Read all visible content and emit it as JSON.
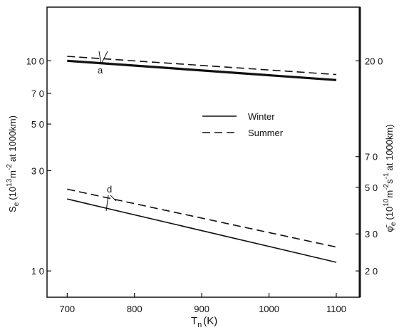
{
  "chart_data": {
    "type": "line",
    "x": [
      700,
      1100
    ],
    "xlabel": "T",
    "xlabel_sub": "n",
    "xlabel_unit": "(K)",
    "xlim": [
      670,
      1135
    ],
    "xticks": [
      700,
      800,
      900,
      1000,
      1100
    ],
    "xtick_labels": [
      "700",
      "800",
      "900",
      "1000",
      "1100"
    ],
    "left_axis": {
      "label": "S",
      "label_sub": "e",
      "label_rest": "(10",
      "label_sup": "13",
      "label_m": "m",
      "label_sup2": "-2",
      "label_tail": "at 1000km)",
      "scale": "log",
      "lim": [
        0.75,
        18
      ],
      "ticks": [
        1.0,
        3.0,
        5.0,
        7.0,
        10.0
      ],
      "tick_labels": [
        "1 0",
        "3 0",
        "5 0",
        "7 0",
        "10 0"
      ]
    },
    "right_axis": {
      "label": "φ̄",
      "label_sub": "e",
      "label_rest": "(10",
      "label_sup": "10",
      "label_m": "m",
      "label_sup2": "-2",
      "label_s": "s",
      "label_sup3": "-1",
      "label_tail": "at 1000km)",
      "scale": "log",
      "ticks": [
        2.0,
        3.0,
        5.0,
        7.0,
        20.0
      ],
      "tick_labels": [
        "2 0",
        "3 0",
        "5 0",
        "7 0",
        "20 0"
      ],
      "tick_at_left_value": [
        1.0,
        1.5,
        2.5,
        3.5,
        10.0
      ]
    },
    "series": [
      {
        "name": "Winter",
        "curve": "a",
        "axis": "left",
        "style": "solid-thick",
        "x": [
          700,
          1100
        ],
        "y": [
          10.0,
          8.1
        ]
      },
      {
        "name": "Summer",
        "curve": "a",
        "axis": "left",
        "style": "dashed",
        "x": [
          700,
          1100
        ],
        "y": [
          10.5,
          8.6
        ]
      },
      {
        "name": "Winter",
        "curve": "d",
        "axis": "right",
        "style": "solid",
        "x": [
          700,
          1100
        ],
        "y": [
          4.4,
          2.2
        ]
      },
      {
        "name": "Summer",
        "curve": "d",
        "axis": "right",
        "style": "dashed",
        "x": [
          700,
          1100
        ],
        "y": [
          4.9,
          2.6
        ]
      }
    ],
    "legend": {
      "placement": "center-right",
      "entries": [
        {
          "label": "Winter",
          "style": "solid"
        },
        {
          "label": "Summer",
          "style": "dashed"
        }
      ]
    },
    "annotations": [
      {
        "text": "a",
        "x": 745,
        "y": 8.3,
        "axis": "left"
      },
      {
        "text": "d",
        "x": 762,
        "y": 2.45,
        "axis": "left"
      }
    ],
    "grid": false,
    "colors": {
      "line": "#111111",
      "background": "#ffffff"
    }
  }
}
